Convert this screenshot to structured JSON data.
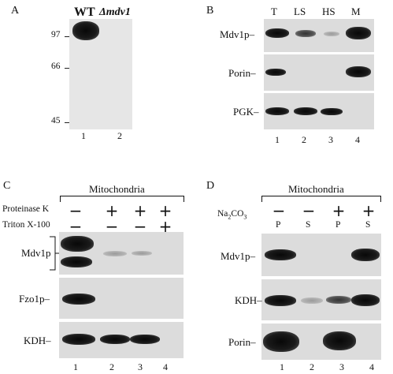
{
  "panel_a": {
    "letter": "A",
    "headers": [
      "WT",
      "Δmdv1"
    ],
    "markers": [
      "97",
      "66",
      "45"
    ],
    "lanes": [
      "1",
      "2"
    ]
  },
  "panel_b": {
    "letter": "B",
    "headers": [
      "T",
      "LS",
      "HS",
      "M"
    ],
    "rows": [
      "Mdv1p",
      "Porin",
      "PGK"
    ],
    "lanes": [
      "1",
      "2",
      "3",
      "4"
    ]
  },
  "panel_c": {
    "letter": "C",
    "title": "Mitochondria",
    "treatments": [
      {
        "label": "Proteinase K",
        "signs": [
          "−",
          "+",
          "+",
          "+"
        ]
      },
      {
        "label": "Triton X-100",
        "signs": [
          "−",
          "−",
          "−",
          "+"
        ]
      }
    ],
    "rows": [
      "Mdv1p",
      "Fzo1p",
      "KDH"
    ],
    "lanes": [
      "1",
      "2",
      "3",
      "4"
    ]
  },
  "panel_d": {
    "letter": "D",
    "title": "Mitochondria",
    "treatment_base": "Na",
    "treatment_sub": "2",
    "treatment_tail": "CO",
    "treatment_sub2": "3",
    "signs": [
      "−",
      "−",
      "+",
      "+"
    ],
    "fractions": [
      "P",
      "S",
      "P",
      "S"
    ],
    "rows": [
      "Mdv1p",
      "KDH",
      "Porin"
    ],
    "lanes": [
      "1",
      "2",
      "3",
      "4"
    ]
  }
}
